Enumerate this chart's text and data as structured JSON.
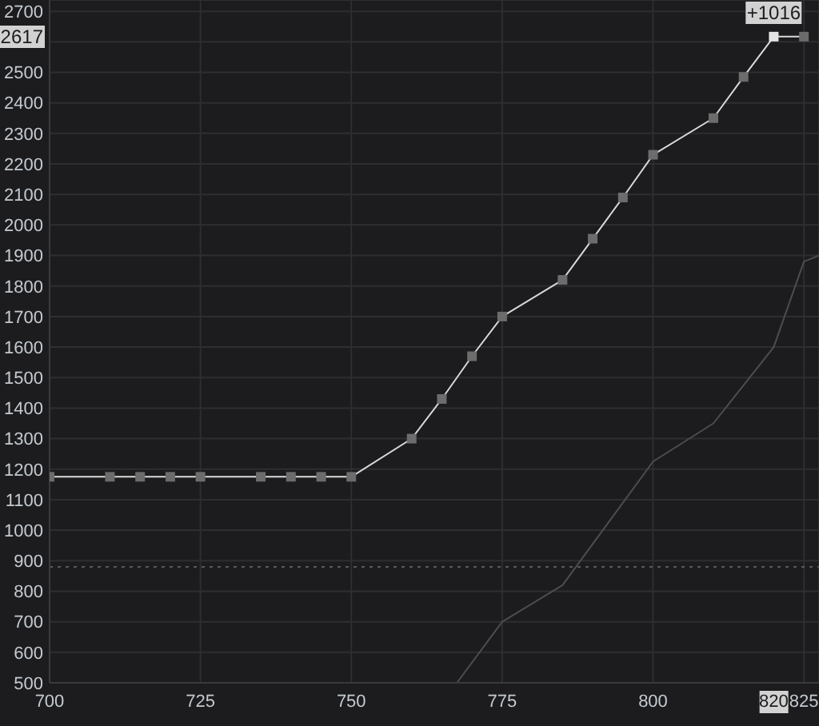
{
  "chart_data": {
    "type": "line",
    "xlim": [
      700,
      827.5
    ],
    "ylim": [
      500,
      2737
    ],
    "xticks": [
      700,
      725,
      750,
      775,
      800,
      825
    ],
    "yticks": [
      500,
      600,
      700,
      800,
      900,
      1000,
      1100,
      1200,
      1300,
      1400,
      1500,
      1600,
      1700,
      1800,
      1900,
      2000,
      2100,
      2200,
      2300,
      2400,
      2500,
      {
        "value": 2600,
        "label": null
      },
      2700
    ],
    "grid": true,
    "marker": "square",
    "line_style": "solid",
    "ref_lines": [
      {
        "axis": "y",
        "value": 880,
        "line_style": "dotted",
        "color": "#5a5a5a"
      }
    ],
    "annotations": [
      {
        "text": "+1016",
        "x": 820,
        "y": 2617
      },
      {
        "text": "2617",
        "y": 2617
      },
      "820"
    ],
    "series": [
      {
        "color": "#d9d9d9",
        "x": [
          700,
          710,
          715,
          720,
          725,
          735,
          740,
          745,
          750,
          760,
          765,
          770,
          775,
          785,
          790,
          795,
          800,
          810,
          815,
          820,
          825
        ],
        "values": [
          1175,
          1175,
          1175,
          1175,
          1175,
          1175,
          1175,
          1175,
          1175,
          1300,
          1430,
          1570,
          1700,
          1820,
          1955,
          2090,
          2230,
          2350,
          2485,
          2617,
          2617
        ],
        "colors": [
          "#6c6c6c",
          "#6c6c6c",
          "#6c6c6c",
          "#6c6c6c",
          "#6c6c6c",
          "#6c6c6c",
          "#6c6c6c",
          "#6c6c6c",
          "#6c6c6c",
          "#6c6c6c",
          "#6c6c6c",
          "#6c6c6c",
          "#6c6c6c",
          "#6c6c6c",
          "#6c6c6c",
          "#6c6c6c",
          "#6c6c6c",
          "#6c6c6c",
          "#6c6c6c",
          "#e4e4e4",
          "#6c6c6c"
        ]
      },
      {
        "color": "#4d4d4d",
        "marker": "none",
        "x": [
          767.5,
          775,
          785,
          800,
          810,
          820,
          825,
          827.5
        ],
        "values": [
          500,
          700,
          820,
          1225,
          1350,
          1600,
          1880,
          1900
        ]
      }
    ]
  }
}
